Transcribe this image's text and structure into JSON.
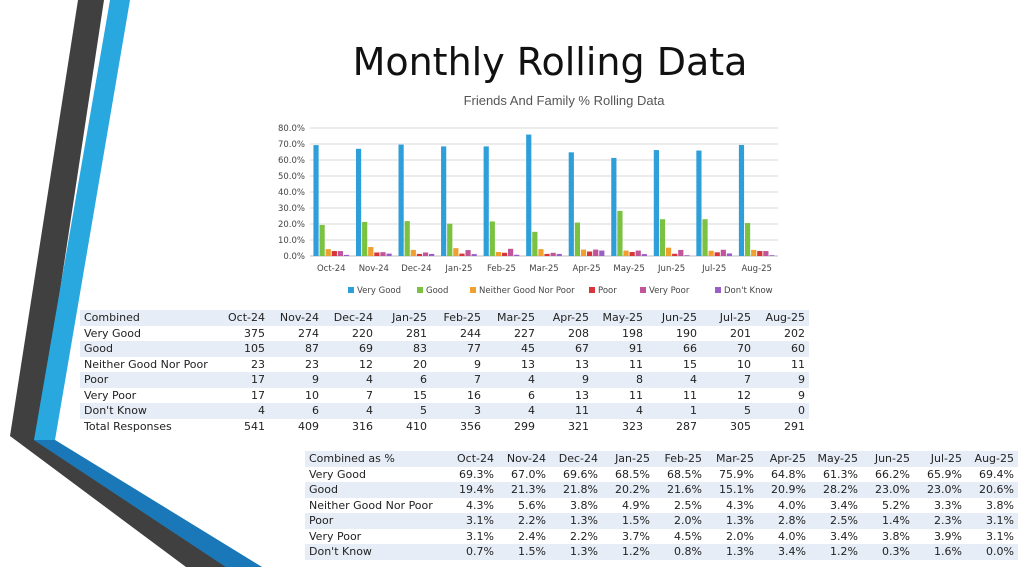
{
  "page": {
    "title": "Monthly Rolling Data"
  },
  "chart_data": {
    "type": "bar",
    "title": "Friends And Family % Rolling Data",
    "categories": [
      "Oct-24",
      "Nov-24",
      "Dec-24",
      "Jan-25",
      "Feb-25",
      "Mar-25",
      "Apr-25",
      "May-25",
      "Jun-25",
      "Jul-25",
      "Aug-25"
    ],
    "ylim": [
      0,
      80
    ],
    "yticks": [
      "0.0%",
      "10.0%",
      "20.0%",
      "30.0%",
      "40.0%",
      "50.0%",
      "60.0%",
      "70.0%",
      "80.0%"
    ],
    "grid": true,
    "legend_position": "bottom",
    "series": [
      {
        "name": "Very Good",
        "color": "#2e9fd8",
        "values": [
          69.3,
          67.0,
          69.6,
          68.5,
          68.5,
          75.9,
          64.8,
          61.3,
          66.2,
          65.9,
          69.4
        ]
      },
      {
        "name": "Good",
        "color": "#7cc242",
        "values": [
          19.4,
          21.3,
          21.8,
          20.2,
          21.6,
          15.1,
          20.9,
          28.2,
          23.0,
          23.0,
          20.6
        ]
      },
      {
        "name": "Neither Good Nor Poor",
        "color": "#f0a030",
        "values": [
          4.3,
          5.6,
          3.8,
          4.9,
          2.5,
          4.3,
          4.0,
          3.4,
          5.2,
          3.3,
          3.8
        ]
      },
      {
        "name": "Poor",
        "color": "#d8363a",
        "values": [
          3.1,
          2.2,
          1.3,
          1.5,
          2.0,
          1.3,
          2.8,
          2.5,
          1.4,
          2.3,
          3.1
        ]
      },
      {
        "name": "Very Poor",
        "color": "#c2559a",
        "values": [
          3.1,
          2.4,
          2.2,
          3.7,
          4.5,
          2.0,
          4.0,
          3.4,
          3.8,
          3.9,
          3.1
        ]
      },
      {
        "name": "Don't Know",
        "color": "#9a5fc6",
        "values": [
          0.7,
          1.5,
          1.3,
          1.2,
          0.8,
          1.3,
          3.4,
          1.2,
          0.3,
          1.6,
          0.0
        ]
      }
    ]
  },
  "combined_table": {
    "header": [
      "Combined",
      "Oct-24",
      "Nov-24",
      "Dec-24",
      "Jan-25",
      "Feb-25",
      "Mar-25",
      "Apr-25",
      "May-25",
      "Jun-25",
      "Jul-25",
      "Aug-25"
    ],
    "rows": [
      [
        "Very Good",
        "375",
        "274",
        "220",
        "281",
        "244",
        "227",
        "208",
        "198",
        "190",
        "201",
        "202"
      ],
      [
        "Good",
        "105",
        "87",
        "69",
        "83",
        "77",
        "45",
        "67",
        "91",
        "66",
        "70",
        "60"
      ],
      [
        "Neither Good Nor Poor",
        "23",
        "23",
        "12",
        "20",
        "9",
        "13",
        "13",
        "11",
        "15",
        "10",
        "11"
      ],
      [
        "Poor",
        "17",
        "9",
        "4",
        "6",
        "7",
        "4",
        "9",
        "8",
        "4",
        "7",
        "9"
      ],
      [
        "Very Poor",
        "17",
        "10",
        "7",
        "15",
        "16",
        "6",
        "13",
        "11",
        "11",
        "12",
        "9"
      ],
      [
        "Don't Know",
        "4",
        "6",
        "4",
        "5",
        "3",
        "4",
        "11",
        "4",
        "1",
        "5",
        "0"
      ],
      [
        "Total Responses",
        "541",
        "409",
        "316",
        "410",
        "356",
        "299",
        "321",
        "323",
        "287",
        "305",
        "291"
      ]
    ]
  },
  "percent_table": {
    "header": [
      "Combined as %",
      "Oct-24",
      "Nov-24",
      "Dec-24",
      "Jan-25",
      "Feb-25",
      "Mar-25",
      "Apr-25",
      "May-25",
      "Jun-25",
      "Jul-25",
      "Aug-25"
    ],
    "rows": [
      [
        "Very Good",
        "69.3%",
        "67.0%",
        "69.6%",
        "68.5%",
        "68.5%",
        "75.9%",
        "64.8%",
        "61.3%",
        "66.2%",
        "65.9%",
        "69.4%"
      ],
      [
        "Good",
        "19.4%",
        "21.3%",
        "21.8%",
        "20.2%",
        "21.6%",
        "15.1%",
        "20.9%",
        "28.2%",
        "23.0%",
        "23.0%",
        "20.6%"
      ],
      [
        "Neither Good Nor Poor",
        "4.3%",
        "5.6%",
        "3.8%",
        "4.9%",
        "2.5%",
        "4.3%",
        "4.0%",
        "3.4%",
        "5.2%",
        "3.3%",
        "3.8%"
      ],
      [
        "Poor",
        "3.1%",
        "2.2%",
        "1.3%",
        "1.5%",
        "2.0%",
        "1.3%",
        "2.8%",
        "2.5%",
        "1.4%",
        "2.3%",
        "3.1%"
      ],
      [
        "Very Poor",
        "3.1%",
        "2.4%",
        "2.2%",
        "3.7%",
        "4.5%",
        "2.0%",
        "4.0%",
        "3.4%",
        "3.8%",
        "3.9%",
        "3.1%"
      ],
      [
        "Don't Know",
        "0.7%",
        "1.5%",
        "1.3%",
        "1.2%",
        "0.8%",
        "1.3%",
        "3.4%",
        "1.2%",
        "0.3%",
        "1.6%",
        "0.0%"
      ]
    ]
  }
}
